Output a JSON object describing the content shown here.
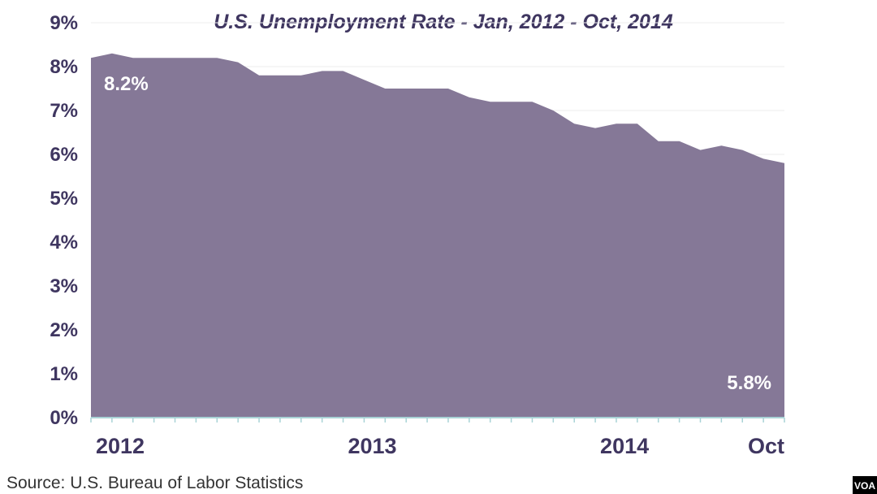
{
  "chart_data": {
    "type": "area",
    "title": "U.S. Unemployment Rate - Jan, 2012 - Oct, 2014",
    "xlabel": "",
    "ylabel": "",
    "ylim": [
      0,
      9
    ],
    "y_ticks": [
      "0%",
      "1%",
      "2%",
      "3%",
      "4%",
      "5%",
      "6%",
      "7%",
      "8%",
      "9%"
    ],
    "x_tick_labels": [
      {
        "label": "2012",
        "index": 0
      },
      {
        "label": "2013",
        "index": 12
      },
      {
        "label": "2014",
        "index": 24
      },
      {
        "label": "Oct",
        "index": 33
      }
    ],
    "series": [
      {
        "color": "#857897",
        "x": [
          "2012-01",
          "2012-02",
          "2012-03",
          "2012-04",
          "2012-05",
          "2012-06",
          "2012-07",
          "2012-08",
          "2012-09",
          "2012-10",
          "2012-11",
          "2012-12",
          "2013-01",
          "2013-02",
          "2013-03",
          "2013-04",
          "2013-05",
          "2013-06",
          "2013-07",
          "2013-08",
          "2013-09",
          "2013-10",
          "2013-11",
          "2013-12",
          "2014-01",
          "2014-02",
          "2014-03",
          "2014-04",
          "2014-05",
          "2014-06",
          "2014-07",
          "2014-08",
          "2014-09",
          "2014-10"
        ],
        "values": [
          8.2,
          8.3,
          8.2,
          8.2,
          8.2,
          8.2,
          8.2,
          8.1,
          7.8,
          7.8,
          7.8,
          7.9,
          7.9,
          7.7,
          7.5,
          7.5,
          7.5,
          7.5,
          7.3,
          7.2,
          7.2,
          7.2,
          7.0,
          6.7,
          6.6,
          6.7,
          6.7,
          6.3,
          6.3,
          6.1,
          6.2,
          6.1,
          5.9,
          5.8
        ]
      }
    ],
    "annotations": [
      {
        "text": "8.2%",
        "index": 0
      },
      {
        "text": "5.8%",
        "index": 33
      }
    ],
    "grid": true,
    "legend": "none"
  },
  "source_text": "Source: U.S. Bureau of Labor Statistics",
  "logo_text": "VOA"
}
